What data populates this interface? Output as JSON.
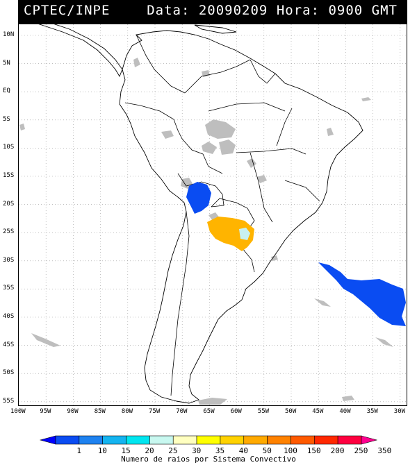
{
  "header": {
    "source": "CPTEC/INPE",
    "date_label": "Data:",
    "date": "20090209",
    "time_label": "Hora:",
    "time": "0900 GMT"
  },
  "axes": {
    "lat_labels": [
      "10N",
      "5N",
      "EQ",
      "5S",
      "10S",
      "15S",
      "20S",
      "25S",
      "30S",
      "35S",
      "40S",
      "45S",
      "50S",
      "55S"
    ],
    "lon_labels": [
      "100W",
      "95W",
      "90W",
      "85W",
      "80W",
      "75W",
      "70W",
      "65W",
      "60W",
      "55W",
      "50W",
      "45W",
      "40W",
      "35W",
      "30W"
    ]
  },
  "colorbar": {
    "caption": "Numero de raios por Sistema Convectivo",
    "labels": [
      "1",
      "10",
      "15",
      "20",
      "25",
      "30",
      "35",
      "40",
      "50",
      "100",
      "150",
      "200",
      "250",
      "350"
    ],
    "colors": [
      "#0000ff",
      "#0a4cf2",
      "#1e82f0",
      "#14b4f0",
      "#00e6f0",
      "#c8f8f0",
      "#ffffc0",
      "#ffff00",
      "#ffd200",
      "#ffaa00",
      "#ff8200",
      "#ff5a00",
      "#ff2800",
      "#ff0040",
      "#ff0090"
    ]
  },
  "systems": {
    "colors": {
      "blue": "#0a4cf2",
      "orange": "#ffb400",
      "pale": "#c8f0f0",
      "gray": "#bebebe"
    }
  }
}
